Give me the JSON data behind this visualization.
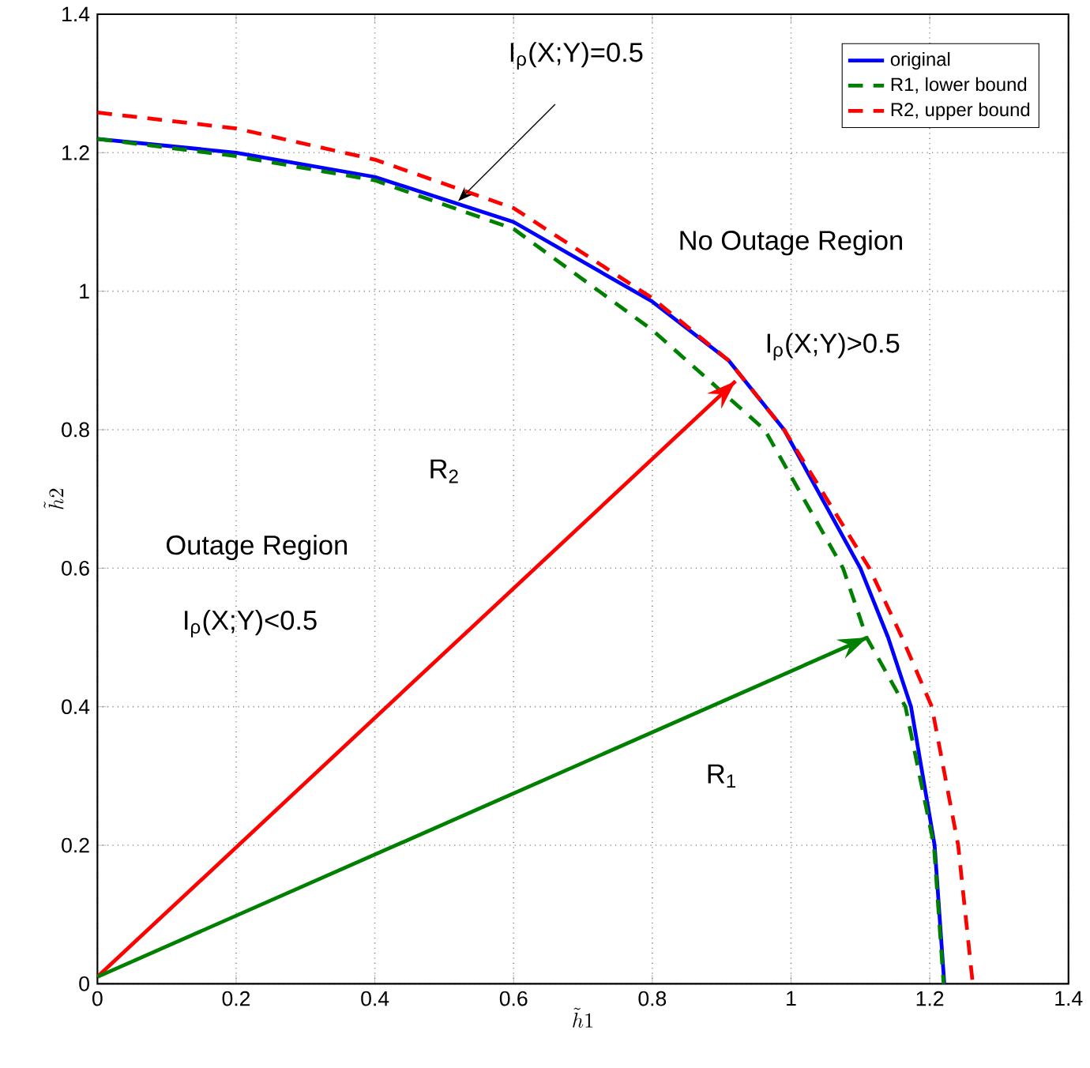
{
  "chart_data": {
    "type": "line",
    "xlabel": "\\tilde{h}1",
    "ylabel": "\\tilde{h}2",
    "xlim": [
      0,
      1.4
    ],
    "ylim": [
      0,
      1.4
    ],
    "xticks": [
      0,
      0.2,
      0.4,
      0.6,
      0.8,
      1,
      1.2,
      1.4
    ],
    "yticks": [
      0,
      0.2,
      0.4,
      0.6,
      0.8,
      1,
      1.2,
      1.4
    ],
    "grid": true,
    "legend": "top right",
    "series": [
      {
        "name": "original",
        "color": "#0000ff",
        "line_style": "solid",
        "x": [
          0,
          0.2,
          0.4,
          0.6,
          0.8,
          0.91,
          0.99,
          1.1,
          1.14,
          1.173,
          1.207,
          1.221
        ],
        "values": [
          1.22,
          1.2,
          1.165,
          1.1,
          0.985,
          0.9,
          0.8,
          0.6,
          0.5,
          0.4,
          0.2,
          0
        ]
      },
      {
        "name": "R1, lower bound",
        "color": "#008000",
        "line_style": "dashed",
        "x": [
          0,
          0.2,
          0.4,
          0.6,
          0.8,
          0.962,
          1.075,
          1.109,
          1.165,
          1.206,
          1.22
        ],
        "values": [
          1.22,
          1.195,
          1.16,
          1.09,
          0.944,
          0.8,
          0.6,
          0.5,
          0.4,
          0.2,
          0
        ]
      },
      {
        "name": "R2, upper bound",
        "color": "#ff0000",
        "line_style": "dashed",
        "x": [
          0,
          0.2,
          0.4,
          0.6,
          0.8,
          0.91,
          0.99,
          1.113,
          1.16,
          1.203,
          1.241,
          1.262
        ],
        "values": [
          1.258,
          1.235,
          1.19,
          1.12,
          0.99,
          0.9,
          0.8,
          0.6,
          0.5,
          0.4,
          0.2,
          0
        ]
      },
      {
        "color": "#ff0000",
        "line_style": "solid",
        "x": [
          0,
          0.92
        ],
        "values": [
          0.01,
          0.87
        ]
      },
      {
        "color": "#008000",
        "line_style": "solid",
        "x": [
          0,
          1.11
        ],
        "values": [
          0.01,
          0.5
        ]
      }
    ],
    "annotations": [
      {
        "text": "I$_{ρ}$(X;Y)=0.5",
        "x": 0.52,
        "y": 1.13
      },
      "No Outage Region",
      "I$_{ρ}$(X;Y)>0.5",
      "R$_{2}$",
      "Outage Region",
      "I$_{ρ}$(X;Y)<0.5",
      "R$_{1}$"
    ]
  }
}
